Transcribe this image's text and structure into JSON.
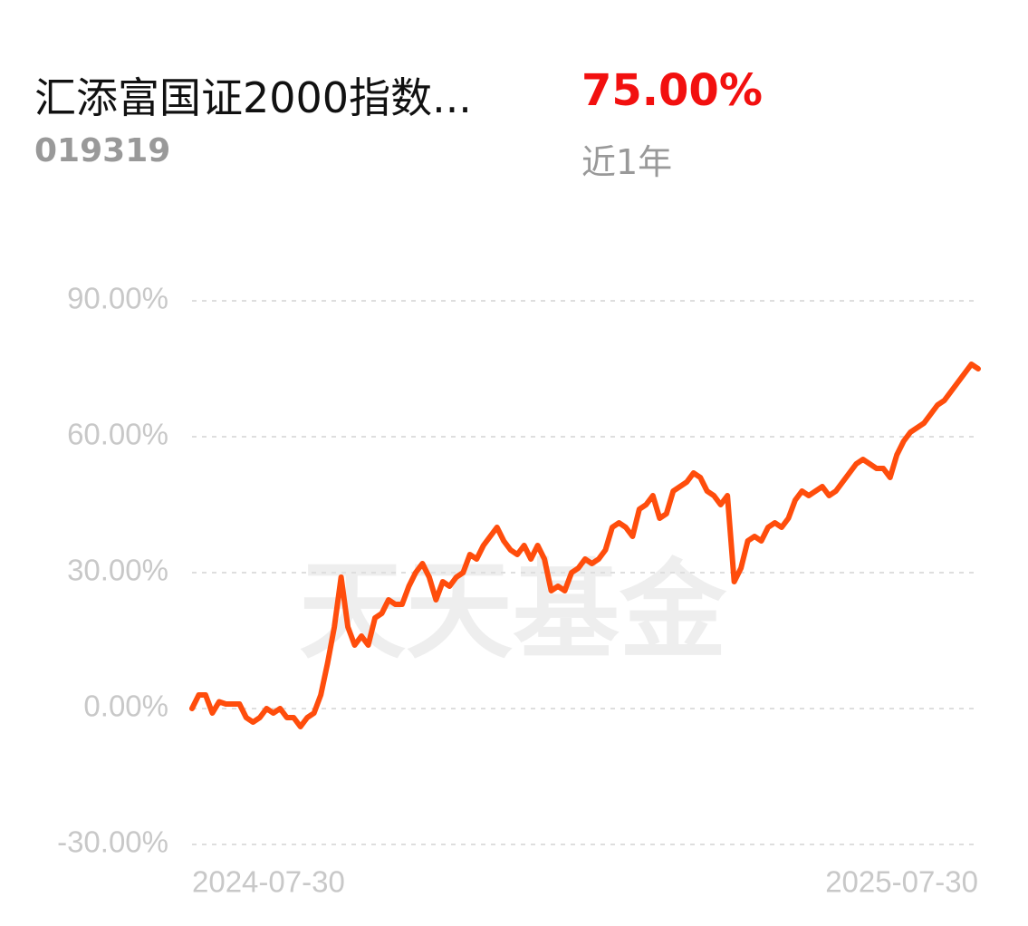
{
  "header": {
    "title": "汇添富国证2000指数...",
    "code": "019319",
    "return": "75.00%",
    "period": "近1年"
  },
  "chart_data": {
    "type": "line",
    "watermark": "天天基金",
    "categories": [
      "2024-07-30",
      null,
      null,
      null,
      null,
      null,
      null,
      null,
      null,
      null,
      null,
      null,
      null,
      null,
      null,
      null,
      null,
      null,
      null,
      null,
      null,
      null,
      null,
      null,
      null,
      null,
      null,
      null,
      null,
      null,
      null,
      null,
      null,
      null,
      null,
      null,
      null,
      null,
      null,
      null,
      null,
      null,
      null,
      null,
      null,
      null,
      null,
      null,
      null,
      null,
      null,
      null,
      null,
      null,
      null,
      null,
      null,
      null,
      null,
      null,
      null,
      null,
      null,
      null,
      null,
      null,
      null,
      null,
      null,
      null,
      null,
      null,
      null,
      null,
      null,
      null,
      null,
      null,
      null,
      null,
      null,
      null,
      null,
      null,
      null,
      null,
      null,
      null,
      null,
      null,
      null,
      null,
      null,
      null,
      null,
      null,
      null,
      null,
      null,
      null,
      null,
      null,
      null,
      null,
      null,
      null,
      null,
      null,
      null,
      null,
      null,
      null,
      null,
      null,
      null,
      null,
      "2025-07-30"
    ],
    "series": [
      {
        "color": "#ff4d0c",
        "values": [
          0,
          3,
          3,
          -1,
          1.5,
          1,
          1,
          1,
          -2,
          -3,
          -2,
          0,
          -1,
          0,
          -2,
          -2,
          -4,
          -2,
          -1,
          3,
          10,
          18,
          29,
          18,
          14,
          16,
          14,
          20,
          21,
          24,
          23,
          23,
          27,
          30,
          32,
          29,
          24,
          28,
          27,
          29,
          30,
          34,
          33,
          36,
          38,
          40,
          37,
          35,
          34,
          36,
          33,
          36,
          33,
          26,
          27,
          26,
          30,
          31,
          33,
          32,
          33,
          35,
          40,
          41,
          40,
          38,
          44,
          45,
          47,
          42,
          43,
          48,
          49,
          50,
          52,
          51,
          48,
          47,
          45,
          47,
          28,
          31,
          37,
          38,
          37,
          40,
          41,
          40,
          42,
          46,
          48,
          47,
          48,
          49,
          47,
          48,
          50,
          52,
          54,
          55,
          54,
          53,
          53,
          51,
          56,
          59,
          61,
          62,
          63,
          65,
          67,
          68,
          70,
          72,
          74,
          76,
          75
        ]
      }
    ],
    "ylim": [
      -30,
      90
    ],
    "yticks": [
      {
        "value": -30,
        "label": "-30.00%"
      },
      {
        "value": 0,
        "label": "0.00%"
      },
      {
        "value": 30,
        "label": "30.00%"
      },
      {
        "value": 60,
        "label": "60.00%"
      },
      {
        "value": 90,
        "label": "90.00%"
      }
    ],
    "grid": true
  }
}
